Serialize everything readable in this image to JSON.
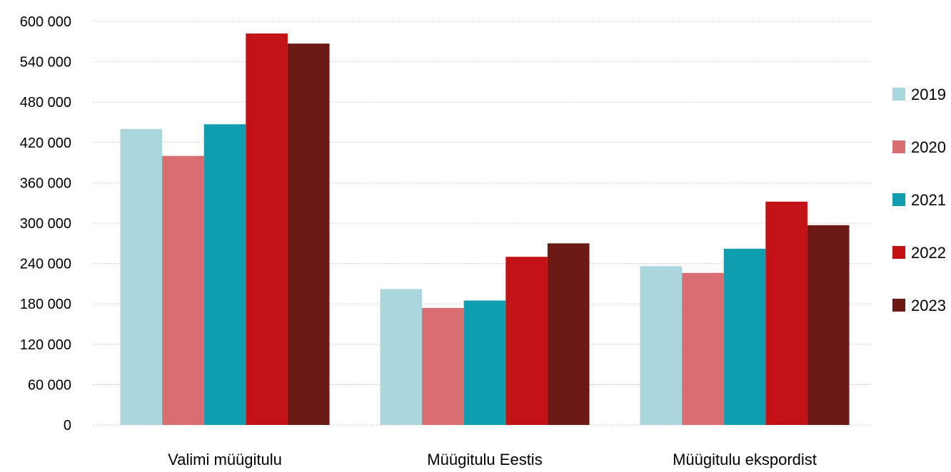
{
  "chart_data": {
    "type": "bar",
    "title": "",
    "xlabel": "",
    "ylabel": "",
    "categories": [
      "Valimi müügitulu",
      "Müügitulu Eestis",
      "Müügitulu ekspordist"
    ],
    "series": [
      {
        "name": "2019",
        "color": "#acd6de",
        "values": [
          440000,
          202000,
          236000
        ]
      },
      {
        "name": "2020",
        "color": "#d96e72",
        "values": [
          400000,
          174000,
          226000
        ]
      },
      {
        "name": "2021",
        "color": "#0f9db0",
        "values": [
          447000,
          185000,
          262000
        ]
      },
      {
        "name": "2022",
        "color": "#c31215",
        "values": [
          582000,
          250000,
          332000
        ]
      },
      {
        "name": "2023",
        "color": "#6b1a15",
        "values": [
          567000,
          270000,
          297000
        ]
      }
    ],
    "ylim": [
      0,
      600000
    ],
    "yticks": [
      "0",
      "60 000",
      "120 000",
      "180 000",
      "240 000",
      "300 000",
      "360 000",
      "420 000",
      "480 000",
      "540 000",
      "600 000"
    ],
    "grid": true,
    "legend_position": "right"
  }
}
